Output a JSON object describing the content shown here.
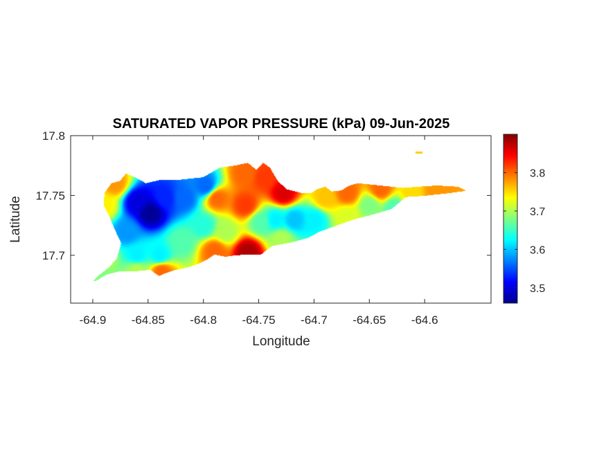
{
  "chart_data": {
    "type": "heatmap",
    "title": "SATURATED VAPOR PRESSURE (kPa) 09-Jun-2025",
    "xlabel": "Longitude",
    "ylabel": "Latitude",
    "xlim": [
      -64.92,
      -64.54
    ],
    "ylim": [
      17.66,
      17.8
    ],
    "x_ticks": [
      -64.9,
      -64.85,
      -64.8,
      -64.75,
      -64.7,
      -64.65,
      -64.6
    ],
    "x_tick_labels": [
      "-64.9",
      "-64.85",
      "-64.8",
      "-64.75",
      "-64.7",
      "-64.65",
      "-64.6"
    ],
    "y_ticks": [
      17.7,
      17.75,
      17.8
    ],
    "y_tick_labels": [
      "17.7",
      "17.75",
      "17.8"
    ],
    "colormap": "jet",
    "clim": [
      3.46,
      3.9
    ],
    "colorbar_ticks": [
      3.5,
      3.6,
      3.7,
      3.8
    ],
    "colorbar_tick_labels": [
      "3.5",
      "3.6",
      "3.7",
      "3.8"
    ],
    "colorbar_position": "right",
    "grid": false,
    "region_outline": [
      [
        -64.899,
        17.679
      ],
      [
        -64.893,
        17.684
      ],
      [
        -64.885,
        17.69
      ],
      [
        -64.878,
        17.697
      ],
      [
        -64.874,
        17.71
      ],
      [
        -64.88,
        17.722
      ],
      [
        -64.885,
        17.733
      ],
      [
        -64.89,
        17.742
      ],
      [
        -64.889,
        17.752
      ],
      [
        -64.883,
        17.76
      ],
      [
        -64.875,
        17.762
      ],
      [
        -64.87,
        17.768
      ],
      [
        -64.862,
        17.765
      ],
      [
        -64.852,
        17.76
      ],
      [
        -64.838,
        17.763
      ],
      [
        -64.82,
        17.763
      ],
      [
        -64.8,
        17.765
      ],
      [
        -64.785,
        17.773
      ],
      [
        -64.77,
        17.775
      ],
      [
        -64.76,
        17.777
      ],
      [
        -64.752,
        17.771
      ],
      [
        -64.746,
        17.777
      ],
      [
        -64.74,
        17.773
      ],
      [
        -64.733,
        17.762
      ],
      [
        -64.725,
        17.755
      ],
      [
        -64.712,
        17.752
      ],
      [
        -64.702,
        17.752
      ],
      [
        -64.697,
        17.755
      ],
      [
        -64.69,
        17.757
      ],
      [
        -64.684,
        17.753
      ],
      [
        -64.675,
        17.754
      ],
      [
        -64.668,
        17.758
      ],
      [
        -64.66,
        17.76
      ],
      [
        -64.64,
        17.758
      ],
      [
        -64.62,
        17.756
      ],
      [
        -64.605,
        17.757
      ],
      [
        -64.589,
        17.758
      ],
      [
        -64.57,
        17.757
      ],
      [
        -64.563,
        17.754
      ],
      [
        -64.58,
        17.752
      ],
      [
        -64.6,
        17.75
      ],
      [
        -64.617,
        17.749
      ],
      [
        -64.63,
        17.739
      ],
      [
        -64.648,
        17.734
      ],
      [
        -64.665,
        17.73
      ],
      [
        -64.68,
        17.725
      ],
      [
        -64.695,
        17.72
      ],
      [
        -64.705,
        17.715
      ],
      [
        -64.72,
        17.711
      ],
      [
        -64.738,
        17.708
      ],
      [
        -64.748,
        17.701
      ],
      [
        -64.76,
        17.701
      ],
      [
        -64.772,
        17.7
      ],
      [
        -64.78,
        17.699
      ],
      [
        -64.79,
        17.701
      ],
      [
        -64.798,
        17.696
      ],
      [
        -64.805,
        17.693
      ],
      [
        -64.815,
        17.69
      ],
      [
        -64.825,
        17.688
      ],
      [
        -64.835,
        17.685
      ],
      [
        -64.84,
        17.683
      ],
      [
        -64.848,
        17.688
      ],
      [
        -64.86,
        17.687
      ],
      [
        -64.875,
        17.687
      ],
      [
        -64.888,
        17.684
      ],
      [
        -64.897,
        17.679
      ]
    ],
    "islet": [
      [
        -64.608,
        17.786
      ],
      [
        -64.602,
        17.786
      ]
    ],
    "value_anchors": [
      {
        "lon": -64.848,
        "lat": 17.736,
        "value": 3.47
      },
      {
        "lon": -64.86,
        "lat": 17.745,
        "value": 3.5
      },
      {
        "lon": -64.835,
        "lat": 17.748,
        "value": 3.53
      },
      {
        "lon": -64.87,
        "lat": 17.72,
        "value": 3.58
      },
      {
        "lon": -64.86,
        "lat": 17.7,
        "value": 3.62
      },
      {
        "lon": -64.84,
        "lat": 17.7,
        "value": 3.62
      },
      {
        "lon": -64.818,
        "lat": 17.748,
        "value": 3.56
      },
      {
        "lon": -64.798,
        "lat": 17.758,
        "value": 3.56
      },
      {
        "lon": -64.8,
        "lat": 17.725,
        "value": 3.64
      },
      {
        "lon": -64.82,
        "lat": 17.712,
        "value": 3.66
      },
      {
        "lon": -64.79,
        "lat": 17.704,
        "value": 3.8
      },
      {
        "lon": -64.76,
        "lat": 17.703,
        "value": 3.88
      },
      {
        "lon": -64.78,
        "lat": 17.72,
        "value": 3.7
      },
      {
        "lon": -64.762,
        "lat": 17.742,
        "value": 3.82
      },
      {
        "lon": -64.788,
        "lat": 17.748,
        "value": 3.8
      },
      {
        "lon": -64.762,
        "lat": 17.768,
        "value": 3.8
      },
      {
        "lon": -64.745,
        "lat": 17.765,
        "value": 3.82
      },
      {
        "lon": -64.728,
        "lat": 17.752,
        "value": 3.86
      },
      {
        "lon": -64.748,
        "lat": 17.728,
        "value": 3.66
      },
      {
        "lon": -64.735,
        "lat": 17.73,
        "value": 3.62
      },
      {
        "lon": -64.718,
        "lat": 17.73,
        "value": 3.6
      },
      {
        "lon": -64.7,
        "lat": 17.73,
        "value": 3.62
      },
      {
        "lon": -64.73,
        "lat": 17.714,
        "value": 3.7
      },
      {
        "lon": -64.69,
        "lat": 17.748,
        "value": 3.76
      },
      {
        "lon": -64.67,
        "lat": 17.752,
        "value": 3.8
      },
      {
        "lon": -64.65,
        "lat": 17.742,
        "value": 3.68
      },
      {
        "lon": -64.628,
        "lat": 17.74,
        "value": 3.66
      },
      {
        "lon": -64.612,
        "lat": 17.752,
        "value": 3.75
      },
      {
        "lon": -64.59,
        "lat": 17.754,
        "value": 3.78
      },
      {
        "lon": -64.64,
        "lat": 17.755,
        "value": 3.8
      },
      {
        "lon": -64.67,
        "lat": 17.733,
        "value": 3.72
      },
      {
        "lon": -64.88,
        "lat": 17.76,
        "value": 3.78
      },
      {
        "lon": -64.86,
        "lat": 17.688,
        "value": 3.7
      },
      {
        "lon": -64.838,
        "lat": 17.687,
        "value": 3.8
      },
      {
        "lon": -64.89,
        "lat": 17.7,
        "value": 3.7
      },
      {
        "lon": -64.896,
        "lat": 17.682,
        "value": 3.68
      },
      {
        "lon": -64.89,
        "lat": 17.742,
        "value": 3.74
      }
    ]
  }
}
